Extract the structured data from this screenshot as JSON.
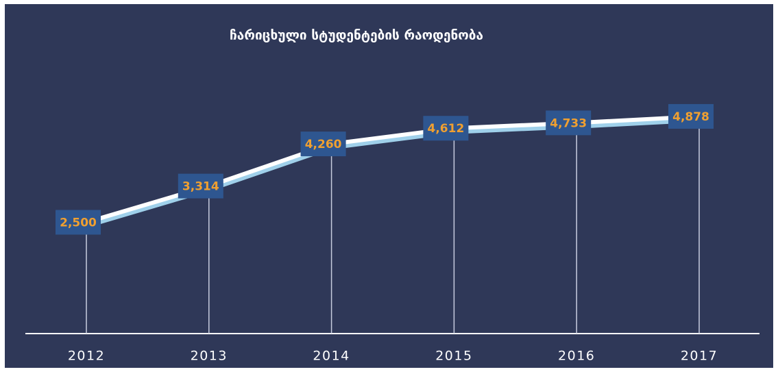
{
  "chart_data": {
    "type": "line",
    "title": "ჩარიცხული სტუდენტების რაოდენობა",
    "categories": [
      "2012",
      "2013",
      "2014",
      "2015",
      "2016",
      "2017"
    ],
    "series": [
      {
        "name": null,
        "color": "#ffffff",
        "values": [
          2500,
          3314,
          4260,
          4612,
          4733,
          4878
        ],
        "value_labels": [
          "2,500",
          "3,314",
          "4,260",
          "4,612",
          "4,733",
          "4,878"
        ]
      }
    ],
    "ylim": [
      0,
      7000
    ]
  }
}
